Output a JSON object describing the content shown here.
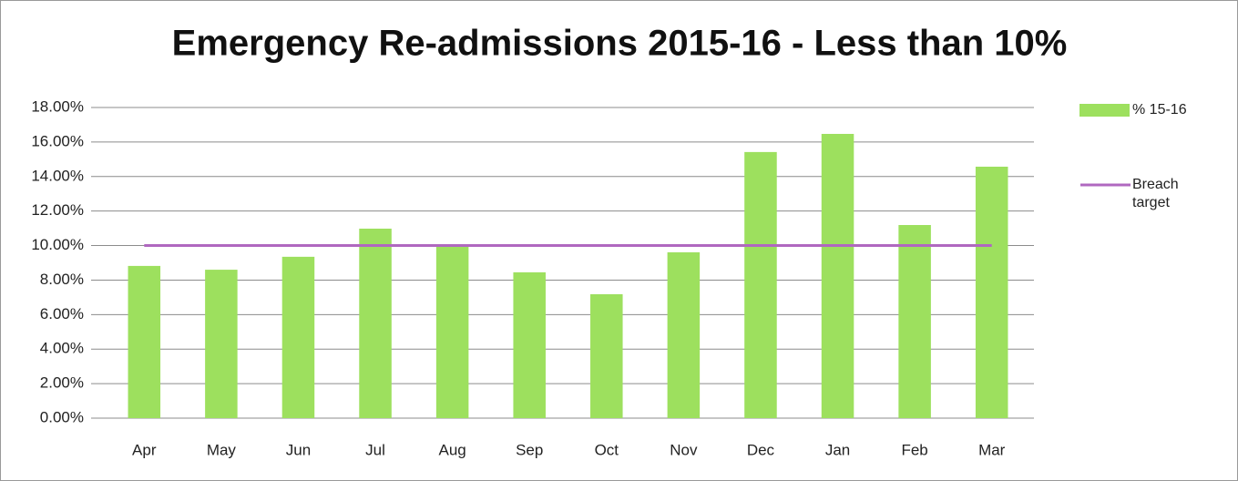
{
  "chart_data": {
    "type": "bar",
    "title": "Emergency Re-admissions 2015-16 - Less than 10%",
    "categories": [
      "Apr",
      "May",
      "Jun",
      "Jul",
      "Aug",
      "Sep",
      "Oct",
      "Nov",
      "Dec",
      "Jan",
      "Feb",
      "Mar"
    ],
    "series": [
      {
        "name": "% 15-16",
        "type": "bar",
        "color": "#9de05e",
        "values": [
          8.82,
          8.6,
          9.35,
          10.98,
          9.93,
          8.45,
          7.18,
          9.61,
          15.42,
          16.47,
          11.19,
          14.57
        ]
      },
      {
        "name": "Breach target",
        "type": "line",
        "color": "#b068c0",
        "values": [
          10,
          10,
          10,
          10,
          10,
          10,
          10,
          10,
          10,
          10,
          10,
          10
        ]
      }
    ],
    "ylim": [
      0,
      18
    ],
    "yticks": [
      {
        "value": 0,
        "label": "0.00%"
      },
      {
        "value": 2,
        "label": "2.00%"
      },
      {
        "value": 4,
        "label": "4.00%"
      },
      {
        "value": 6,
        "label": "6.00%"
      },
      {
        "value": 8,
        "label": "8.00%"
      },
      {
        "value": 10,
        "label": "10.00%"
      },
      {
        "value": 12,
        "label": "12.00%"
      },
      {
        "value": 14,
        "label": "14.00%"
      },
      {
        "value": 16,
        "label": "16.00%"
      },
      {
        "value": 18,
        "label": "18.00%"
      }
    ],
    "grid": true,
    "legend": "right"
  }
}
